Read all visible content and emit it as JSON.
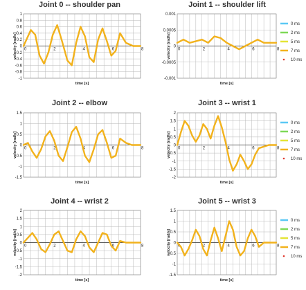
{
  "colors": {
    "0 ms": "#5bc8f5",
    "2 ms": "#7ed957",
    "5 ms": "#e4e436",
    "7 ms": "#f2b21c",
    "10 ms": "#e03a2f"
  },
  "legend": [
    "0 ms",
    "2 ms",
    "5 ms",
    "7 ms",
    "10 ms"
  ],
  "chart_data": [
    {
      "type": "line",
      "title": "Joint 0 -- shoulder pan",
      "xlabel": "time [s]",
      "ylabel": "velocity [rad/s]",
      "xlim": [
        0,
        8
      ],
      "ylim": [
        -1,
        1
      ],
      "xticks": [
        "0",
        "2",
        "4",
        "6",
        "8"
      ],
      "yticks": [
        "-1",
        "-0.8",
        "-0.6",
        "-0.4",
        "-0.2",
        "0",
        "0.2",
        "0.4",
        "0.6",
        "0.8",
        "1"
      ],
      "xtick_values": [
        0,
        2,
        4,
        6,
        8
      ],
      "ytick_values": [
        -1,
        -0.8,
        -0.6,
        -0.4,
        -0.2,
        0,
        0.2,
        0.4,
        0.6,
        0.8,
        1
      ],
      "legend": false,
      "series": [
        {
          "name": "7 ms",
          "x": [
            0,
            0.2,
            0.5,
            0.8,
            1.1,
            1.4,
            1.7,
            2.0,
            2.3,
            2.6,
            3.0,
            3.3,
            3.6,
            3.9,
            4.2,
            4.5,
            4.8,
            5.1,
            5.4,
            5.7,
            6.0,
            6.3,
            6.6,
            7.0,
            7.5,
            8.0
          ],
          "y": [
            0,
            0.2,
            0.5,
            0.35,
            -0.3,
            -0.55,
            -0.2,
            0.35,
            0.65,
            0.2,
            -0.45,
            -0.6,
            0.1,
            0.6,
            0.3,
            -0.35,
            -0.5,
            0.2,
            0.55,
            0.15,
            -0.3,
            -0.15,
            0.4,
            0.1,
            0,
            0
          ]
        }
      ]
    },
    {
      "type": "line",
      "title": "Joint 1 -- shoulder lift",
      "xlabel": "time [s]",
      "ylabel": "velocity [rad/s]",
      "xlim": [
        0,
        8
      ],
      "ylim": [
        -0.001,
        0.001
      ],
      "xticks": [
        "0",
        "2",
        "4",
        "6",
        "8"
      ],
      "yticks": [
        "-0.001",
        "-0.0005",
        "0",
        "0.0005",
        "0.001"
      ],
      "xtick_values": [
        0,
        2,
        4,
        6,
        8
      ],
      "ytick_values": [
        -0.001,
        -0.0005,
        0,
        0.0005,
        0.001
      ],
      "legend": true,
      "series": [
        {
          "name": "7 ms",
          "x": [
            0,
            0.5,
            1,
            1.5,
            2,
            2.5,
            3,
            3.5,
            4,
            4.5,
            5,
            5.5,
            6,
            6.5,
            7,
            7.5,
            8
          ],
          "y": [
            0.0001,
            0.0002,
            0.0001,
            0.00015,
            0.0002,
            0.0001,
            0.0003,
            0.00025,
            0.0001,
            0,
            -0.0001,
            0,
            0.0001,
            0.0002,
            0.0001,
            0.0001,
            0.0001
          ]
        }
      ]
    },
    {
      "type": "line",
      "title": "Joint 2 -- elbow",
      "xlabel": "time [s]",
      "ylabel": "velocity [rad/s]",
      "xlim": [
        0,
        8
      ],
      "ylim": [
        -1.5,
        1.5
      ],
      "xticks": [
        "0",
        "2",
        "4",
        "6",
        "8"
      ],
      "yticks": [
        "-1.5",
        "-1",
        "-0.5",
        "0",
        "0.5",
        "1",
        "1.5"
      ],
      "xtick_values": [
        0,
        2,
        4,
        6,
        8
      ],
      "ytick_values": [
        -1.5,
        -1,
        -0.5,
        0,
        0.5,
        1,
        1.5
      ],
      "legend": false,
      "series": [
        {
          "name": "7 ms",
          "x": [
            0,
            0.3,
            0.6,
            0.9,
            1.2,
            1.5,
            1.8,
            2.1,
            2.4,
            2.7,
            3.0,
            3.3,
            3.6,
            3.9,
            4.2,
            4.5,
            4.8,
            5.1,
            5.4,
            5.7,
            6.0,
            6.3,
            6.6,
            7.0,
            7.4,
            8.0
          ],
          "y": [
            0,
            0.1,
            -0.3,
            -0.6,
            -0.2,
            0.4,
            0.65,
            0.2,
            -0.5,
            -0.75,
            -0.1,
            0.6,
            0.85,
            0.3,
            -0.5,
            -0.8,
            -0.2,
            0.5,
            0.7,
            0.1,
            -0.6,
            -0.5,
            0.3,
            0.1,
            0,
            0
          ]
        }
      ]
    },
    {
      "type": "line",
      "title": "Joint 3 -- wrist 1",
      "xlabel": "time [s]",
      "ylabel": "velocity [rad/s]",
      "xlim": [
        0,
        8
      ],
      "ylim": [
        -2,
        2
      ],
      "xticks": [
        "0",
        "2",
        "4",
        "6",
        "8"
      ],
      "yticks": [
        "-2",
        "-1.5",
        "-1",
        "-0.5",
        "0",
        "0.5",
        "1",
        "1.5",
        "2"
      ],
      "xtick_values": [
        0,
        2,
        4,
        6,
        8
      ],
      "ytick_values": [
        -2,
        -1.5,
        -1,
        -0.5,
        0,
        0.5,
        1,
        1.5,
        2
      ],
      "legend": true,
      "series": [
        {
          "name": "7 ms",
          "x": [
            0,
            0.3,
            0.6,
            0.9,
            1.2,
            1.5,
            1.8,
            2.1,
            2.4,
            2.7,
            3.0,
            3.3,
            3.6,
            3.9,
            4.2,
            4.5,
            4.8,
            5.1,
            5.4,
            5.7,
            6.0,
            6.3,
            6.6,
            7.0,
            7.4,
            8.0
          ],
          "y": [
            0,
            0.8,
            1.5,
            1.2,
            0.6,
            0.2,
            0.6,
            1.3,
            1.0,
            0.4,
            1.2,
            1.8,
            1.1,
            0.2,
            -0.9,
            -1.6,
            -1.2,
            -0.6,
            -1.0,
            -1.5,
            -1.2,
            -0.6,
            -0.2,
            -0.1,
            0,
            0
          ]
        }
      ]
    },
    {
      "type": "line",
      "title": "Joint 4 -- wrist 2",
      "xlabel": "time [s]",
      "ylabel": "velocity [rad/s]",
      "xlim": [
        0,
        8
      ],
      "ylim": [
        -2,
        2
      ],
      "xticks": [
        "0",
        "2",
        "4",
        "6",
        "8"
      ],
      "yticks": [
        "-2",
        "-1.5",
        "-1",
        "-0.5",
        "0",
        "0.5",
        "1",
        "1.5",
        "2"
      ],
      "xtick_values": [
        0,
        2,
        4,
        6,
        8
      ],
      "ytick_values": [
        -2,
        -1.5,
        -1,
        -0.5,
        0,
        0.5,
        1,
        1.5,
        2
      ],
      "legend": false,
      "series": [
        {
          "name": "7 ms",
          "x": [
            0,
            0.3,
            0.6,
            0.9,
            1.2,
            1.5,
            1.8,
            2.1,
            2.4,
            2.7,
            3.0,
            3.3,
            3.6,
            3.9,
            4.2,
            4.5,
            4.8,
            5.1,
            5.4,
            5.7,
            6.0,
            6.3,
            6.6,
            7.0,
            7.4,
            8.0
          ],
          "y": [
            0,
            0.3,
            0.6,
            0.2,
            -0.4,
            -0.6,
            -0.1,
            0.5,
            0.7,
            0.1,
            -0.5,
            -0.6,
            0.2,
            0.7,
            0.4,
            -0.3,
            -0.6,
            0,
            0.6,
            0.5,
            -0.2,
            -0.5,
            0.1,
            0,
            0,
            0
          ]
        }
      ]
    },
    {
      "type": "line",
      "title": "Joint 5 -- wrist 3",
      "xlabel": "time [s]",
      "ylabel": "velocity [rad/s]",
      "xlim": [
        0,
        8
      ],
      "ylim": [
        -1.5,
        1.5
      ],
      "xticks": [
        "0",
        "2",
        "4",
        "6",
        "8"
      ],
      "yticks": [
        "-1.5",
        "-1",
        "-0.5",
        "0",
        "0.5",
        "1",
        "1.5"
      ],
      "xtick_values": [
        0,
        2,
        4,
        6,
        8
      ],
      "ytick_values": [
        -1.5,
        -1,
        -0.5,
        0,
        0.5,
        1,
        1.5
      ],
      "legend": true,
      "series": [
        {
          "name": "7 ms",
          "x": [
            0,
            0.3,
            0.6,
            0.9,
            1.2,
            1.5,
            1.8,
            2.1,
            2.4,
            2.7,
            3.0,
            3.3,
            3.6,
            3.9,
            4.2,
            4.5,
            4.8,
            5.1,
            5.4,
            5.7,
            6.0,
            6.3,
            6.6,
            7.0,
            7.4,
            8.0
          ],
          "y": [
            0,
            -0.2,
            -0.6,
            -0.3,
            0.1,
            0.6,
            0.3,
            -0.3,
            -0.6,
            0.1,
            0.7,
            0.2,
            -0.4,
            0.3,
            1.0,
            0.6,
            -0.2,
            -0.6,
            -0.4,
            0.2,
            0.6,
            0.3,
            -0.2,
            0,
            0,
            0
          ]
        }
      ]
    }
  ]
}
